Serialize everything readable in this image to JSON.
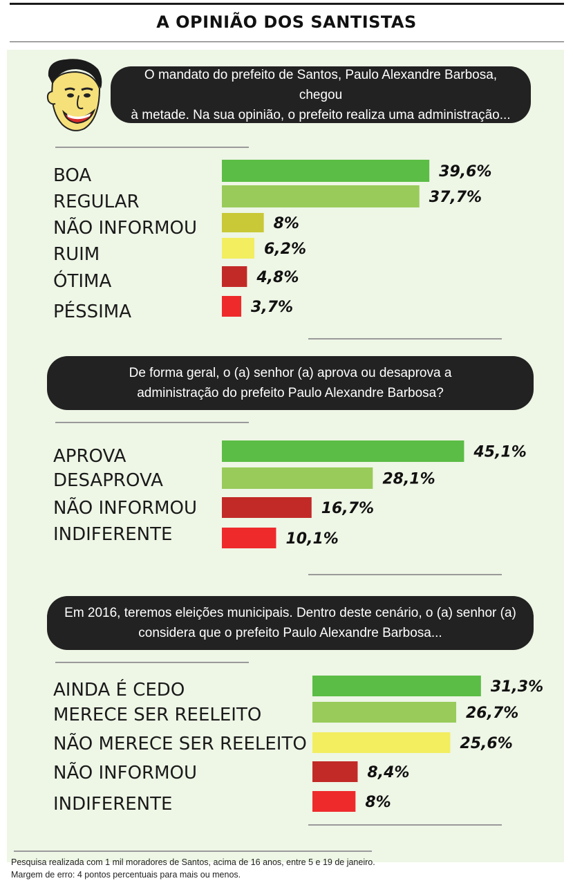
{
  "header": {
    "title": "A OPINIÃO DOS SANTISTAS"
  },
  "questions": [
    {
      "text_line1": "O mandato do prefeito de Santos, Paulo Alexandre Barbosa, chegou",
      "text_line2": "à metade. Na sua opinião, o prefeito realiza uma administração..."
    },
    {
      "text_line1": "De forma geral, o (a) senhor (a) aprova ou desaprova a",
      "text_line2": "administração do prefeito Paulo Alexandre Barbosa?"
    },
    {
      "text_line1": "Em 2016, teremos eleições municipais. Dentro deste cenário, o (a) senhor (a)",
      "text_line2": "considera que o prefeito Paulo Alexandre Barbosa..."
    }
  ],
  "chart_data": [
    {
      "type": "bar",
      "orientation": "horizontal",
      "categories": [
        "BOA",
        "REGULAR",
        "NÃO INFORMOU",
        "RUIM",
        "ÓTIMA",
        "PÉSSIMA"
      ],
      "values": [
        39.6,
        37.7,
        8,
        6.2,
        4.8,
        3.7
      ],
      "value_labels": [
        "39,6%",
        "37,7%",
        "8%",
        "6,2%",
        "4,8%",
        "3,7%"
      ],
      "colors": [
        "#5bbd45",
        "#98cb5a",
        "#c9c836",
        "#f2ee60",
        "#c22a27",
        "#ee2a2b"
      ]
    },
    {
      "type": "bar",
      "orientation": "horizontal",
      "categories": [
        "APROVA",
        "DESAPROVA",
        "NÃO INFORMOU",
        "INDIFERENTE"
      ],
      "values": [
        45.1,
        28.1,
        16.7,
        10.1
      ],
      "value_labels": [
        "45,1%",
        "28,1%",
        "16,7%",
        "10,1%"
      ],
      "colors": [
        "#5bbd45",
        "#98cb5a",
        "#c22a27",
        "#ee2a2b"
      ]
    },
    {
      "type": "bar",
      "orientation": "horizontal",
      "categories": [
        "AINDA É CEDO",
        "MERECE SER REELEITO",
        "NÃO MERECE SER REELEITO",
        "NÃO INFORMOU",
        "INDIFERENTE"
      ],
      "values": [
        31.3,
        26.7,
        25.6,
        8.4,
        8
      ],
      "value_labels": [
        "31,3%",
        "26,7%",
        "25,6%",
        "8,4%",
        "8%"
      ],
      "colors": [
        "#5bbd45",
        "#98cb5a",
        "#f2ee60",
        "#c22a27",
        "#ee2a2b"
      ]
    }
  ],
  "footnote": {
    "line1": "Pesquisa realizada com 1 mil moradores de Santos, acima de 16 anos, entre 5 e 19 de janeiro.",
    "line2": "Margem de erro: 4 pontos percentuais para mais ou menos."
  }
}
